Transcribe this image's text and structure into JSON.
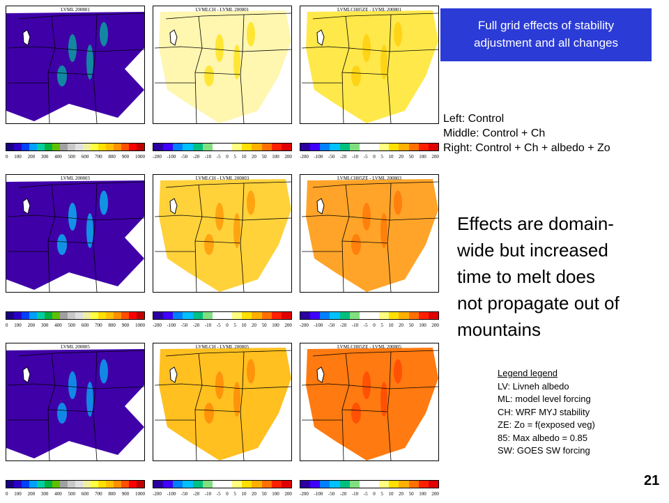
{
  "header_box": {
    "line1": "Full grid effects of stability",
    "line2": "adjustment and all changes"
  },
  "notes": {
    "left": "Left: Control",
    "middle": "Middle: Control + Ch",
    "right": "Right: Control + Ch + albedo + Zo"
  },
  "effects_text": {
    "line1": "Effects are domain-",
    "line2": "wide but increased",
    "line3": "time to melt does",
    "line4": "not propagate out of",
    "line5": "mountains"
  },
  "legend": {
    "heading": "Legend legend",
    "items": [
      "LV: Livneh albedo",
      "ML: model level forcing",
      "CH: WRF MYJ stability",
      "ZE: Zo = f(exposed veg)",
      "85: Max albedo = 0.85",
      "SW: GOES SW forcing"
    ]
  },
  "page_number": "21",
  "colorbars": {
    "absolute": {
      "ticks": [
        "0",
        "100",
        "200",
        "300",
        "400",
        "500",
        "600",
        "700",
        "800",
        "900",
        "1000"
      ],
      "colors": [
        "#1b0080",
        "#2a00c8",
        "#0040ff",
        "#00a0ff",
        "#00d0a0",
        "#00b040",
        "#60c000",
        "#a0a0a0",
        "#c8c8c8",
        "#e0e0e0",
        "#f0f0a0",
        "#ffff40",
        "#ffe000",
        "#ffc000",
        "#ff9000",
        "#ff5000",
        "#ff0000",
        "#c00000"
      ]
    },
    "difference": {
      "ticks": [
        "-200",
        "-100",
        "-50",
        "-20",
        "-10",
        "-5",
        "0",
        "5",
        "10",
        "20",
        "50",
        "100",
        "200"
      ],
      "colors": [
        "#2b00a0",
        "#4000ff",
        "#0080ff",
        "#00c0ff",
        "#00c080",
        "#80e080",
        "#ffffff",
        "#ffffff",
        "#ffff80",
        "#ffe000",
        "#ffb000",
        "#ff7000",
        "#ff2000",
        "#e00000"
      ]
    }
  },
  "rows": [
    {
      "panels": [
        {
          "title": "LVML 200801",
          "style": "absolute",
          "fill": "#3f00a8",
          "accent": "#00c0a0"
        },
        {
          "title": "LVMLCH - LVML 200801",
          "style": "difference",
          "fill": "#fff6b0",
          "accent": "#ffe000"
        },
        {
          "title": "LVMLCH85ZE - LVML 200801",
          "style": "difference",
          "fill": "#ffe84a",
          "accent": "#ffcc00"
        }
      ]
    },
    {
      "panels": [
        {
          "title": "LVML 200803",
          "style": "absolute",
          "fill": "#3f00a8",
          "accent": "#00d0ff"
        },
        {
          "title": "LVMLCH - LVML 200803",
          "style": "difference",
          "fill": "#ffd23a",
          "accent": "#ff9000"
        },
        {
          "title": "LVMLCH85ZE - LVML 200803",
          "style": "difference",
          "fill": "#ffa428",
          "accent": "#ff7000"
        }
      ]
    },
    {
      "panels": [
        {
          "title": "LVML 200805",
          "style": "absolute",
          "fill": "#3f00a8",
          "accent": "#00c0ff"
        },
        {
          "title": "LVMLCH - LVML 200805",
          "style": "difference",
          "fill": "#ffc020",
          "accent": "#ff8000"
        },
        {
          "title": "LVMLCH85ZE - LVML 200805",
          "style": "difference",
          "fill": "#ff7a10",
          "accent": "#ff4000"
        }
      ]
    }
  ]
}
